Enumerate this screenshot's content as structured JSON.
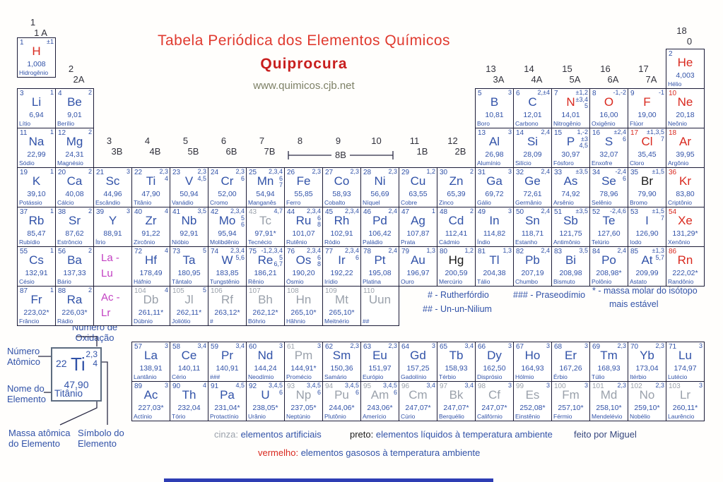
{
  "title": {
    "main": "Tabela Periódica dos Elementos Químicos",
    "sub": "Quiprocura",
    "url": "www.quimicos.cjb.net"
  },
  "colors": {
    "blue": "#3152a8",
    "red": "#d9291f",
    "gray": "#9aa1ab",
    "black": "#1a1a1a",
    "magenta": "#c23fc2",
    "title-red": "#e03a2f",
    "sub-red": "#c81e1e",
    "url-gray": "#7d8066",
    "border": "#1c1c38"
  },
  "groups": [
    {
      "col": 1,
      "num": "1",
      "lab": "1 A"
    },
    {
      "col": 2,
      "num": "2",
      "lab": "2A"
    },
    {
      "col": 3,
      "num": "3",
      "lab": "3B"
    },
    {
      "col": 4,
      "num": "4",
      "lab": "4B"
    },
    {
      "col": 5,
      "num": "5",
      "lab": "5B"
    },
    {
      "col": 6,
      "num": "6",
      "lab": "6B"
    },
    {
      "col": 7,
      "num": "7",
      "lab": "7B"
    },
    {
      "col": 8,
      "num": "8",
      "lab": ""
    },
    {
      "col": 9,
      "num": "9",
      "lab": ""
    },
    {
      "col": 10,
      "num": "10",
      "lab": ""
    },
    {
      "col": 11,
      "num": "11",
      "lab": "1B"
    },
    {
      "col": 12,
      "num": "12",
      "lab": "2B"
    },
    {
      "col": 13,
      "num": "13",
      "lab": "3A"
    },
    {
      "col": 14,
      "num": "14",
      "lab": "4A"
    },
    {
      "col": 15,
      "num": "15",
      "lab": "5A"
    },
    {
      "col": 16,
      "num": "16",
      "lab": "6A"
    },
    {
      "col": 17,
      "num": "17",
      "lab": "7A"
    },
    {
      "col": 18,
      "num": "18",
      "lab": "0"
    }
  ],
  "bracket_8b": "8B",
  "red_number_symbols": [
    "Ne",
    "Cl",
    "Ar",
    "Kr",
    "Xe",
    "Rn"
  ],
  "element_fields": [
    "atomic_number",
    "symbol",
    "mass",
    "name",
    "oxidation",
    "col",
    "row",
    "symbol_color"
  ],
  "elements": [
    [
      1,
      "H",
      "1,008",
      "Hidrogênio",
      "±1",
      1,
      1,
      "r"
    ],
    [
      2,
      "He",
      "4,003",
      "Hélio",
      "",
      18,
      1,
      "r"
    ],
    [
      3,
      "Li",
      "6,94",
      "Lítio",
      "1",
      1,
      2,
      "b"
    ],
    [
      4,
      "Be",
      "9,01",
      "Berílio",
      "2",
      2,
      2,
      "b"
    ],
    [
      5,
      "B",
      "10,81",
      "Boro",
      "3",
      13,
      2,
      "b"
    ],
    [
      6,
      "C",
      "12,01",
      "Carbono",
      "2,±4",
      14,
      2,
      "b"
    ],
    [
      7,
      "N",
      "14,01",
      "Nitrogênio",
      "±1,2|±3,4|5",
      15,
      2,
      "r"
    ],
    [
      8,
      "O",
      "16,00",
      "Oxigênio",
      "-1,-2",
      16,
      2,
      "r"
    ],
    [
      9,
      "F",
      "19,00",
      "Flúor",
      "-1",
      17,
      2,
      "r"
    ],
    [
      10,
      "Ne",
      "20,18",
      "Neônio",
      "",
      18,
      2,
      "r"
    ],
    [
      11,
      "Na",
      "22,99",
      "Sódio",
      "1",
      1,
      3,
      "b"
    ],
    [
      12,
      "Mg",
      "24,31",
      "Magnésio",
      "2",
      2,
      3,
      "b"
    ],
    [
      13,
      "Al",
      "26,98",
      "Alumínio",
      "3",
      13,
      3,
      "b"
    ],
    [
      14,
      "Si",
      "28,09",
      "Silício",
      "2,4",
      14,
      3,
      "b"
    ],
    [
      15,
      "P",
      "30,97",
      "Fósforo",
      "1,-2|±3|4,5",
      15,
      3,
      "b"
    ],
    [
      16,
      "S",
      "32,07",
      "Enxofre",
      "±2,4|6",
      16,
      3,
      "b"
    ],
    [
      17,
      "Cl",
      "35,45",
      "Cloro",
      "±1,3,5|7",
      17,
      3,
      "r"
    ],
    [
      18,
      "Ar",
      "39,95",
      "Argônio",
      "",
      18,
      3,
      "r"
    ],
    [
      19,
      "K",
      "39,10",
      "Potássio",
      "1",
      1,
      4,
      "b"
    ],
    [
      20,
      "Ca",
      "40,08",
      "Cálcio",
      "2",
      2,
      4,
      "b"
    ],
    [
      21,
      "Sc",
      "44,96",
      "Escândio",
      "3",
      3,
      4,
      "b"
    ],
    [
      22,
      "Ti",
      "47,90",
      "Titânio",
      "2,3|4",
      4,
      4,
      "b"
    ],
    [
      23,
      "V",
      "50,94",
      "Vanádio",
      "2,3|4,5",
      5,
      4,
      "b"
    ],
    [
      24,
      "Cr",
      "52,00",
      "Cromo",
      "2,3|6",
      6,
      4,
      "b"
    ],
    [
      25,
      "Mn",
      "54,94",
      "Manganês",
      "2,3,4|6|7",
      7,
      4,
      "b"
    ],
    [
      26,
      "Fe",
      "55,85",
      "Ferro",
      "2,3",
      8,
      4,
      "b"
    ],
    [
      27,
      "Co",
      "58,93",
      "Cobalto",
      "2,3",
      9,
      4,
      "b"
    ],
    [
      28,
      "Ni",
      "56,69",
      "Níquel",
      "2,3",
      10,
      4,
      "b"
    ],
    [
      29,
      "Cu",
      "63,55",
      "Cobre",
      "1,2",
      11,
      4,
      "b"
    ],
    [
      30,
      "Zn",
      "65,39",
      "Zinco",
      "2",
      12,
      4,
      "b"
    ],
    [
      31,
      "Ga",
      "69,72",
      "Gálio",
      "3",
      13,
      4,
      "b"
    ],
    [
      32,
      "Ge",
      "72,61",
      "Germânio",
      "2,4",
      14,
      4,
      "b"
    ],
    [
      33,
      "As",
      "74,92",
      "Arsênio",
      "±3,5",
      15,
      4,
      "b"
    ],
    [
      34,
      "Se",
      "78,96",
      "Selênio",
      "-2,4|6",
      16,
      4,
      "b"
    ],
    [
      35,
      "Br",
      "79,90",
      "Bromo",
      "±1,5",
      17,
      4,
      "k"
    ],
    [
      36,
      "Kr",
      "83,80",
      "Criptônio",
      "",
      18,
      4,
      "r"
    ],
    [
      37,
      "Rb",
      "85,47",
      "Rubídio",
      "1",
      1,
      5,
      "b"
    ],
    [
      38,
      "Sr",
      "87,62",
      "Estrôncio",
      "2",
      2,
      5,
      "b"
    ],
    [
      39,
      "Y",
      "88,91",
      "Ítrio",
      "3",
      3,
      5,
      "b"
    ],
    [
      40,
      "Zr",
      "91,22",
      "Zircônio",
      "4",
      4,
      5,
      "b"
    ],
    [
      41,
      "Nb",
      "92,91",
      "Nióbio",
      "3,5",
      5,
      5,
      "b"
    ],
    [
      42,
      "Mo",
      "95,94",
      "Molibdênio",
      "2,3,4|5|6",
      6,
      5,
      "b"
    ],
    [
      43,
      "Tc",
      "97,91*",
      "Tecnécio",
      "4,7",
      7,
      5,
      "g"
    ],
    [
      44,
      "Ru",
      "101,07",
      "Rutênio",
      "2,3,4|6|8",
      8,
      5,
      "b"
    ],
    [
      45,
      "Rh",
      "102,91",
      "Ródio",
      "2,3,4",
      9,
      5,
      "b"
    ],
    [
      46,
      "Pd",
      "106,42",
      "Paládio",
      "2,4",
      10,
      5,
      "b"
    ],
    [
      47,
      "Ag",
      "107,87",
      "Prata",
      "1",
      11,
      5,
      "b"
    ],
    [
      48,
      "Cd",
      "112,41",
      "Cádmio",
      "2",
      12,
      5,
      "b"
    ],
    [
      49,
      "In",
      "114,82",
      "Índio",
      "3",
      13,
      5,
      "b"
    ],
    [
      50,
      "Sn",
      "118,71",
      "Estanho",
      "2,4",
      14,
      5,
      "b"
    ],
    [
      51,
      "Sb",
      "121,75",
      "Antimônio",
      "±3,5",
      15,
      5,
      "b"
    ],
    [
      52,
      "Te",
      "127,60",
      "Telúrio",
      "-2,4,6",
      16,
      5,
      "b"
    ],
    [
      53,
      "I",
      "126,90",
      "Iodo",
      "±1,5|7",
      17,
      5,
      "b"
    ],
    [
      54,
      "Xe",
      "131,29*",
      "Xenônio",
      "",
      18,
      5,
      "r"
    ],
    [
      55,
      "Cs",
      "132,91",
      "Césio",
      "1",
      1,
      6,
      "b"
    ],
    [
      56,
      "Ba",
      "137,33",
      "Bário",
      "2",
      2,
      6,
      "b"
    ],
    [
      72,
      "Hf",
      "178,49",
      "Háfnio",
      "4",
      4,
      6,
      "b"
    ],
    [
      73,
      "Ta",
      "180,95",
      "Tântalo",
      "5",
      5,
      6,
      "b"
    ],
    [
      74,
      "W",
      "183,85",
      "Tungstênio",
      "2,3,4|5,6",
      6,
      6,
      "b"
    ],
    [
      75,
      "Re",
      "186,21",
      "Rênio",
      "-1,2,3,4|5|6,7",
      7,
      6,
      "b"
    ],
    [
      76,
      "Os",
      "190,20",
      "Ósmio",
      "2,3,4|6|8",
      8,
      6,
      "b"
    ],
    [
      77,
      "Ir",
      "192,22",
      "Irídio",
      "2,3,4|6",
      9,
      6,
      "b"
    ],
    [
      78,
      "Pt",
      "195,08",
      "Platina",
      "2,4",
      10,
      6,
      "b"
    ],
    [
      79,
      "Au",
      "196,97",
      "Ouro",
      "1,3",
      11,
      6,
      "b"
    ],
    [
      80,
      "Hg",
      "200,59",
      "Mercúrio",
      "1,2",
      12,
      6,
      "k"
    ],
    [
      81,
      "Tl",
      "204,38",
      "Tálio",
      "1,3",
      13,
      6,
      "b"
    ],
    [
      82,
      "Pb",
      "207,19",
      "Chumbo",
      "2,4",
      14,
      6,
      "b"
    ],
    [
      83,
      "Bi",
      "208,98",
      "Bismuto",
      "3,5",
      15,
      6,
      "b"
    ],
    [
      84,
      "Po",
      "208,98*",
      "Polônio",
      "2,4",
      16,
      6,
      "b"
    ],
    [
      85,
      "At",
      "209,99",
      "Astato",
      "±1,3|5,7",
      17,
      6,
      "b"
    ],
    [
      86,
      "Rn",
      "222,02*",
      "Randônio",
      "",
      18,
      6,
      "r"
    ],
    [
      87,
      "Fr",
      "223,02*",
      "Frâncio",
      "1",
      1,
      7,
      "b"
    ],
    [
      88,
      "Ra",
      "226,03*",
      "Rádio",
      "2",
      2,
      7,
      "b"
    ],
    [
      104,
      "Db",
      "261,11*",
      "Dúbnio",
      "4",
      4,
      7,
      "g"
    ],
    [
      105,
      "Jl",
      "262,11*",
      "Joliótio",
      "5",
      5,
      7,
      "g"
    ],
    [
      106,
      "Rf",
      "263,12*",
      "#",
      "",
      6,
      7,
      "g"
    ],
    [
      107,
      "Bh",
      "262,12*",
      "Bóhrio",
      "",
      7,
      7,
      "g"
    ],
    [
      108,
      "Hn",
      "265,10*",
      "Hâhnio",
      "",
      8,
      7,
      "g"
    ],
    [
      109,
      "Mt",
      "265,10*",
      "Meitnério",
      "",
      9,
      7,
      "g"
    ],
    [
      110,
      "Uun",
      "",
      "##",
      "",
      10,
      7,
      "g"
    ],
    [
      57,
      "La",
      "138,91",
      "Lantânio",
      "3",
      4,
      8,
      "b"
    ],
    [
      58,
      "Ce",
      "140,11",
      "Cério",
      "3,4",
      5,
      8,
      "b"
    ],
    [
      59,
      "Pr",
      "140,91",
      "###",
      "3,4",
      6,
      8,
      "b"
    ],
    [
      60,
      "Nd",
      "144,24",
      "Neodímio",
      "3",
      7,
      8,
      "b"
    ],
    [
      61,
      "Pm",
      "144,91*",
      "Promécio",
      "3",
      8,
      8,
      "g"
    ],
    [
      62,
      "Sm",
      "150,36",
      "Samário",
      "2,3",
      9,
      8,
      "b"
    ],
    [
      63,
      "Eu",
      "151,97",
      "Európio",
      "2,3",
      10,
      8,
      "b"
    ],
    [
      64,
      "Gd",
      "157,25",
      "Gadolínio",
      "3",
      11,
      8,
      "b"
    ],
    [
      65,
      "Tb",
      "158,93",
      "Térbio",
      "3,4",
      12,
      8,
      "b"
    ],
    [
      66,
      "Dy",
      "162,50",
      "Disprósio",
      "3",
      13,
      8,
      "b"
    ],
    [
      67,
      "Ho",
      "164,93",
      "Hólmio",
      "3",
      14,
      8,
      "b"
    ],
    [
      68,
      "Er",
      "167,26",
      "Érbio",
      "3",
      15,
      8,
      "b"
    ],
    [
      69,
      "Tm",
      "168,93",
      "Túlio",
      "2,3",
      16,
      8,
      "b"
    ],
    [
      70,
      "Yb",
      "173,04",
      "Itérbio",
      "2,3",
      17,
      8,
      "b"
    ],
    [
      71,
      "Lu",
      "174,97",
      "Lutécio",
      "3",
      18,
      8,
      "b"
    ],
    [
      89,
      "Ac",
      "227,03*",
      "Actínio",
      "3",
      4,
      9,
      "b"
    ],
    [
      90,
      "Th",
      "232,04",
      "Tório",
      "4",
      5,
      9,
      "b"
    ],
    [
      91,
      "Pa",
      "231,04*",
      "Protactínio",
      "4,5",
      6,
      9,
      "b"
    ],
    [
      92,
      "U",
      "238,05*",
      "Urânio",
      "3,4,5|6",
      7,
      9,
      "b"
    ],
    [
      93,
      "Np",
      "237,05*",
      "Neptúnio",
      "3,4,5|6",
      8,
      9,
      "g"
    ],
    [
      94,
      "Pu",
      "244,06*",
      "Plutônio",
      "3,4,5|6",
      9,
      9,
      "g"
    ],
    [
      95,
      "Am",
      "243,06*",
      "Amerício",
      "3,4,5|6",
      10,
      9,
      "g"
    ],
    [
      96,
      "Cm",
      "247,07*",
      "Cúrio",
      "3,4",
      11,
      9,
      "g"
    ],
    [
      97,
      "Bk",
      "247,07*",
      "Berquélio",
      "3,4",
      12,
      9,
      "g"
    ],
    [
      98,
      "Cf",
      "247,07*",
      "Califórnio",
      "3",
      13,
      9,
      "g"
    ],
    [
      99,
      "Es",
      "252,08*",
      "Einstênio",
      "3",
      14,
      9,
      "g"
    ],
    [
      100,
      "Fm",
      "257,10*",
      "Férmio",
      "3",
      15,
      9,
      "g"
    ],
    [
      101,
      "Md",
      "258,10*",
      "Mendelévio",
      "2,3",
      16,
      9,
      "g"
    ],
    [
      102,
      "No",
      "259,10*",
      "Nobélio",
      "2,3",
      17,
      9,
      "g"
    ],
    [
      103,
      "Lr",
      "260,11*",
      "Laurêncio",
      "3",
      18,
      9,
      "g"
    ]
  ],
  "series_placeholders": [
    {
      "col": 3,
      "row": 6,
      "line1": "La -",
      "line2": "Lu"
    },
    {
      "col": 3,
      "row": 7,
      "line1": "Ac -",
      "line2": "Lr"
    }
  ],
  "footnotes": {
    "rutherfordio": "# - Rutherfórdio",
    "ununnilium": "## - Un-un-Nilium",
    "praseodimio": "### - Praseodímio",
    "mass_note_line1": "* - massa molar do isótopo",
    "mass_note_line2": "mais estável"
  },
  "legend": {
    "oxidation_line1": "Número de",
    "oxidation_line2": "Oxidação",
    "atomic_line1": "Número",
    "atomic_line2": "Atômico",
    "name_line1": "Nome do",
    "name_line2": "Elemento",
    "mass_line1": "Massa atômica",
    "mass_line2": "do  Elemento",
    "symbol_line1": "Símbolo do",
    "symbol_line2": "Elemento",
    "example": {
      "n": "22",
      "sym": "Ti",
      "ox1": "2,3",
      "ox2": "4",
      "mass": "47,90",
      "name": "Titânio"
    }
  },
  "bottom_legend": {
    "gray_key": "cinza:",
    "gray_text": " elementos artificiais",
    "black_key": "preto:",
    "black_text": " elementos líquidos à temperatura ambiente",
    "red_key": "vermelho:",
    "red_text": " elementos gasosos à temperatura ambiente",
    "credit": "feito por  Miguel"
  }
}
